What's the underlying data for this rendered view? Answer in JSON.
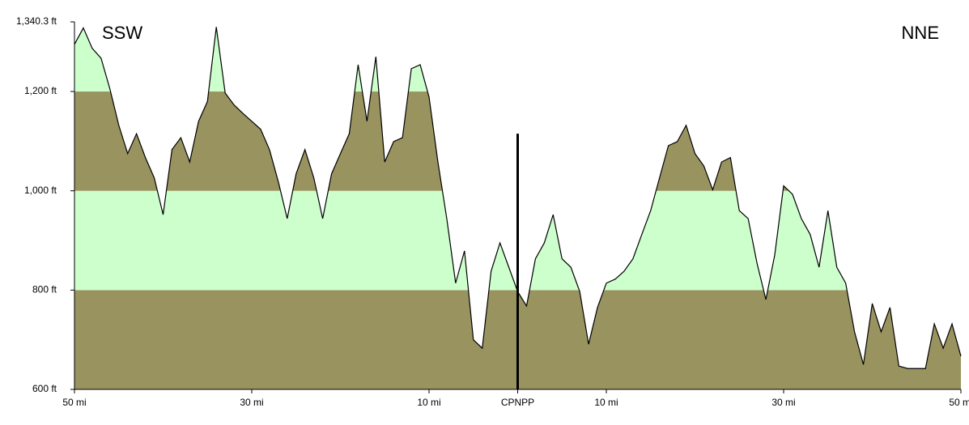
{
  "chart_data": {
    "type": "area",
    "annotations": {
      "left": "SSW",
      "right": "NNE"
    },
    "x": [
      -50,
      -49,
      -48,
      -47,
      -46,
      -45,
      -44,
      -43,
      -42,
      -41,
      -40,
      -39,
      -38,
      -37,
      -36,
      -35,
      -34,
      -33,
      -32,
      -31,
      -30,
      -29,
      -28,
      -27,
      -26,
      -25,
      -24,
      -23,
      -22,
      -21,
      -20,
      -19,
      -18,
      -17,
      -16,
      -15,
      -14,
      -13,
      -12,
      -11,
      -10,
      -9,
      -8,
      -7,
      -6,
      -5,
      -4,
      -3,
      -2,
      -1,
      0,
      1,
      2,
      3,
      4,
      5,
      6,
      7,
      8,
      9,
      10,
      11,
      12,
      13,
      14,
      15,
      16,
      17,
      18,
      19,
      20,
      21,
      22,
      23,
      24,
      25,
      26,
      27,
      28,
      29,
      30,
      31,
      32,
      33,
      34,
      35,
      36,
      37,
      38,
      39,
      40,
      41,
      42,
      43,
      44,
      45,
      46,
      47,
      48,
      49,
      50
    ],
    "values": [
      1295,
      1328,
      1287,
      1267,
      1205,
      1132,
      1075,
      1115,
      1067,
      1026,
      952,
      1083,
      1107,
      1058,
      1140,
      1180,
      1330,
      1197,
      1173,
      1156,
      1140,
      1124,
      1083,
      1018,
      944,
      1034,
      1083,
      1026,
      944,
      1034,
      1075,
      1115,
      1254,
      1140,
      1270,
      1058,
      1099,
      1107,
      1246,
      1254,
      1189,
      1058,
      944,
      814,
      879,
      700,
      683,
      838,
      895,
      846,
      797,
      768,
      863,
      895,
      952,
      863,
      846,
      797,
      691,
      765,
      814,
      822,
      838,
      863,
      912,
      960,
      1026,
      1091,
      1099,
      1132,
      1075,
      1050,
      1002,
      1058,
      1067,
      960,
      944,
      854,
      781,
      871,
      1010,
      993,
      944,
      912,
      846,
      960,
      846,
      814,
      716,
      650,
      773,
      716,
      765,
      647,
      642,
      642,
      642,
      732,
      683,
      732,
      667
    ],
    "line_color": "#000000",
    "band_colors": [
      "#99935f",
      "#ccffcc"
    ],
    "marker": {
      "x": 0,
      "top": 1115,
      "color": "#000000"
    },
    "xlim": [
      -50,
      50
    ],
    "xticks": [
      {
        "value": -50,
        "label": "50 mi"
      },
      {
        "value": -30,
        "label": "30 mi"
      },
      {
        "value": -10,
        "label": "10 mi"
      },
      {
        "value": 0,
        "label": "CPNPP"
      },
      {
        "value": 10,
        "label": "10 mi"
      },
      {
        "value": 30,
        "label": "30 mi"
      },
      {
        "value": 50,
        "label": "50 mi"
      }
    ],
    "ylim": [
      600,
      1340.3
    ],
    "yticks": [
      {
        "value": 600,
        "label": "600 ft"
      },
      {
        "value": 800,
        "label": "800 ft"
      },
      {
        "value": 1000,
        "label": "1,000 ft"
      },
      {
        "value": 1200,
        "label": "1,200 ft"
      },
      {
        "value": 1340.3,
        "label": "1,340.3 ft"
      }
    ]
  }
}
